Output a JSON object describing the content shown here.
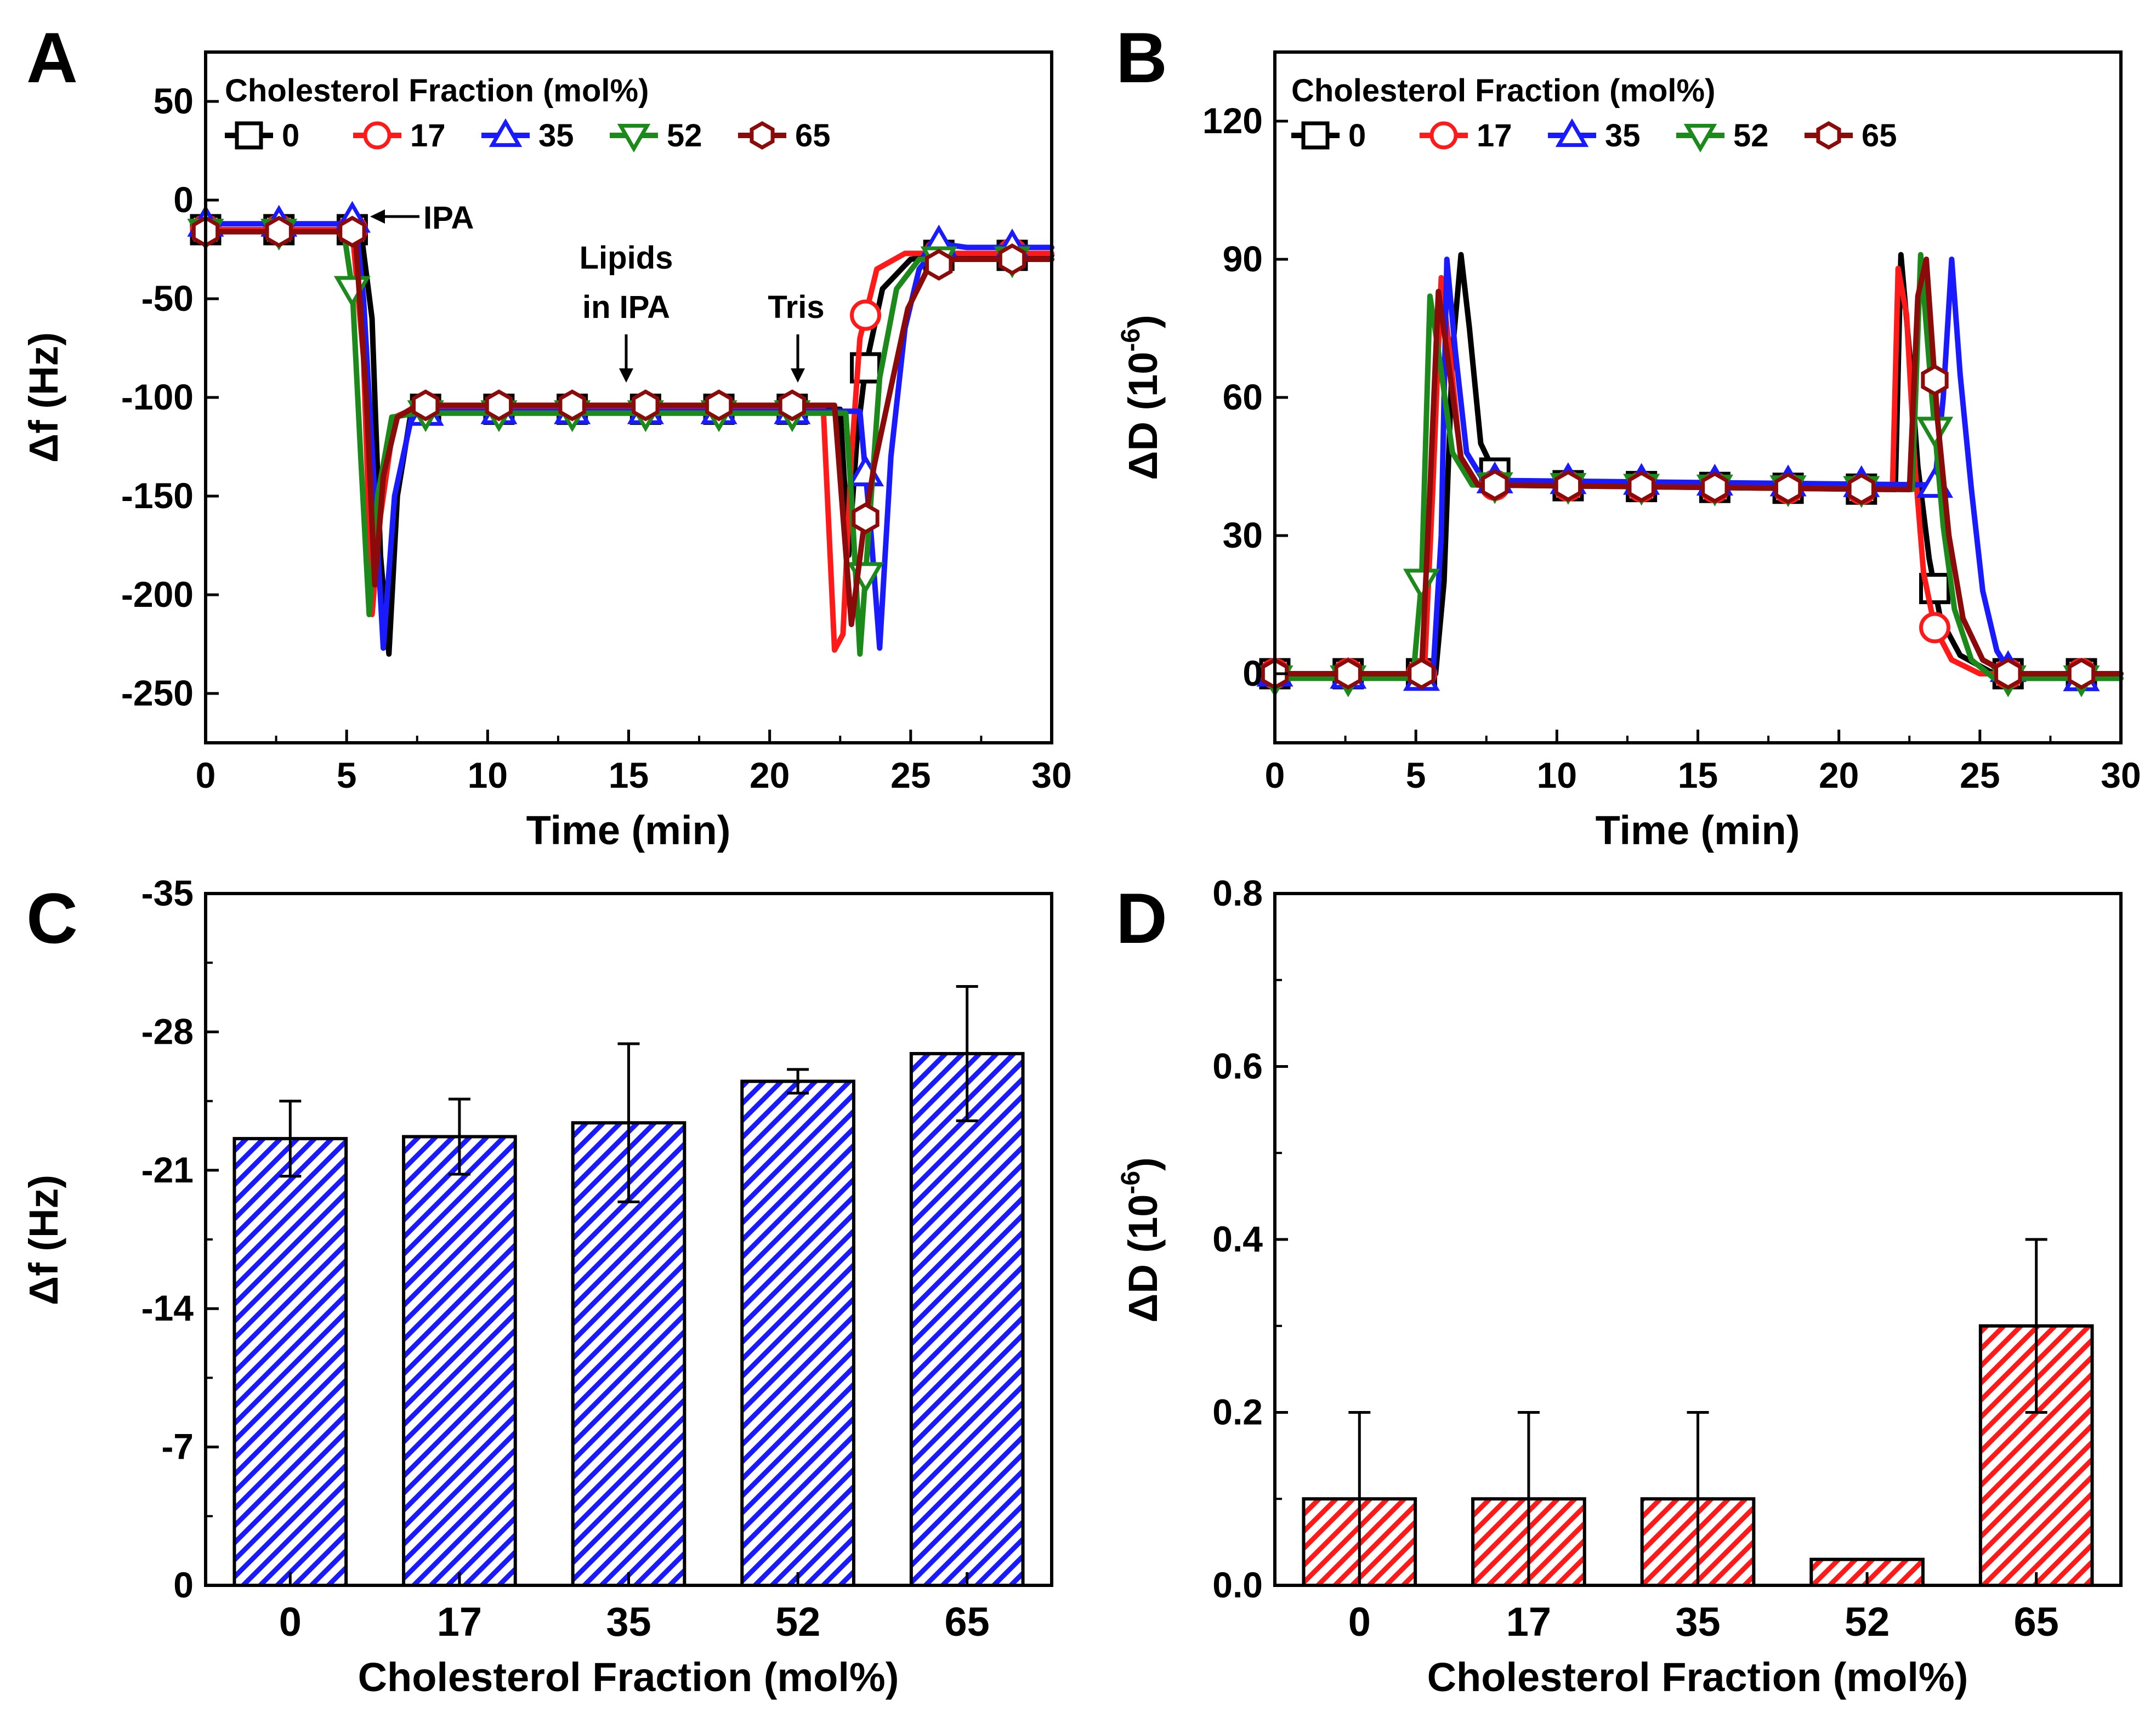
{
  "panels": [
    {
      "letter": "A"
    },
    {
      "letter": "B"
    },
    {
      "letter": "C"
    },
    {
      "letter": "D"
    }
  ],
  "legend": {
    "title": "Cholesterol Fraction (mol%)",
    "entries": [
      {
        "label": "0",
        "color": "#000000",
        "marker": "square"
      },
      {
        "label": "17",
        "color": "#ff1a1a",
        "marker": "circle"
      },
      {
        "label": "35",
        "color": "#1a1aff",
        "marker": "triangle-up"
      },
      {
        "label": "52",
        "color": "#1b8a1b",
        "marker": "triangle-down"
      },
      {
        "label": "65",
        "color": "#8b0a0a",
        "marker": "hexagon"
      }
    ]
  },
  "chart_data": [
    {
      "panel": "A",
      "type": "line",
      "title": "",
      "xlabel": "Time (min)",
      "ylabel": "Δf (Hz)",
      "xlim": [
        0,
        30
      ],
      "ylim": [
        -275,
        75
      ],
      "xticks": [
        0,
        5,
        10,
        15,
        20,
        25,
        30
      ],
      "yticks": [
        50,
        0,
        -50,
        -100,
        -150,
        -200,
        -250
      ],
      "legend_position": "top",
      "annotations": [
        {
          "text": "IPA",
          "x": 6.3,
          "y": -12,
          "arrow": "left"
        },
        {
          "text": "Lipids",
          "x": 15.0,
          "y": -30
        },
        {
          "text": "in IPA",
          "x": 15.0,
          "y": -55,
          "arrow": "down"
        },
        {
          "text": "Tris",
          "x": 21.3,
          "y": -55,
          "arrow": "down"
        }
      ],
      "series": [
        {
          "name": "0",
          "color": "#000000",
          "marker": "square",
          "points": [
            [
              0,
              -15
            ],
            [
              5.5,
              -15
            ],
            [
              5.9,
              -60
            ],
            [
              6.2,
              -180
            ],
            [
              6.5,
              -230
            ],
            [
              6.8,
              -150
            ],
            [
              7.3,
              -106
            ],
            [
              22.5,
              -106
            ],
            [
              22.8,
              -180
            ],
            [
              23.1,
              -120
            ],
            [
              23.4,
              -85
            ],
            [
              24.0,
              -45
            ],
            [
              25.0,
              -30
            ],
            [
              26.0,
              -28
            ],
            [
              30,
              -28
            ]
          ]
        },
        {
          "name": "17",
          "color": "#ff1a1a",
          "marker": "circle",
          "points": [
            [
              0,
              -15
            ],
            [
              5.2,
              -15
            ],
            [
              5.6,
              -80
            ],
            [
              5.9,
              -210
            ],
            [
              6.2,
              -160
            ],
            [
              6.7,
              -110
            ],
            [
              7.5,
              -105
            ],
            [
              21.9,
              -105
            ],
            [
              22.3,
              -228
            ],
            [
              22.6,
              -220
            ],
            [
              22.9,
              -130
            ],
            [
              23.2,
              -70
            ],
            [
              23.8,
              -35
            ],
            [
              24.8,
              -27
            ],
            [
              30,
              -27
            ]
          ]
        },
        {
          "name": "35",
          "color": "#1a1aff",
          "marker": "triangle-up",
          "points": [
            [
              0,
              -12
            ],
            [
              5.1,
              -12
            ],
            [
              5.3,
              -8
            ],
            [
              5.6,
              -50
            ],
            [
              6.0,
              -150
            ],
            [
              6.3,
              -227
            ],
            [
              6.7,
              -150
            ],
            [
              7.3,
              -110
            ],
            [
              8,
              -107
            ],
            [
              23.2,
              -107
            ],
            [
              23.6,
              -170
            ],
            [
              23.9,
              -227
            ],
            [
              24.3,
              -130
            ],
            [
              24.8,
              -65
            ],
            [
              25.3,
              -35
            ],
            [
              26.0,
              -22
            ],
            [
              27,
              -24
            ],
            [
              30,
              -24
            ]
          ]
        },
        {
          "name": "52",
          "color": "#1b8a1b",
          "marker": "triangle-down",
          "points": [
            [
              0,
              -16
            ],
            [
              4.9,
              -16
            ],
            [
              5.2,
              -45
            ],
            [
              5.5,
              -130
            ],
            [
              5.8,
              -210
            ],
            [
              6.1,
              -150
            ],
            [
              6.6,
              -110
            ],
            [
              7.5,
              -108
            ],
            [
              22.7,
              -108
            ],
            [
              22.9,
              -150
            ],
            [
              23.2,
              -230
            ],
            [
              23.5,
              -170
            ],
            [
              23.9,
              -90
            ],
            [
              24.5,
              -45
            ],
            [
              25.3,
              -30
            ],
            [
              30,
              -30
            ]
          ]
        },
        {
          "name": "65",
          "color": "#8b0a0a",
          "marker": "hexagon",
          "points": [
            [
              0,
              -16
            ],
            [
              5.3,
              -16
            ],
            [
              5.7,
              -100
            ],
            [
              6.0,
              -195
            ],
            [
              6.3,
              -140
            ],
            [
              6.8,
              -110
            ],
            [
              7.5,
              -104
            ],
            [
              22.3,
              -104
            ],
            [
              22.6,
              -160
            ],
            [
              22.9,
              -215
            ],
            [
              23.3,
              -170
            ],
            [
              23.7,
              -135
            ],
            [
              24.3,
              -95
            ],
            [
              24.9,
              -55
            ],
            [
              25.6,
              -35
            ],
            [
              26.5,
              -30
            ],
            [
              30,
              -30
            ]
          ]
        }
      ]
    },
    {
      "panel": "B",
      "type": "line",
      "title": "",
      "xlabel": "Time (min)",
      "ylabel": "ΔD (10",
      "ylabel_sup": "-6",
      "ylabel_close": ")",
      "xlim": [
        0,
        30
      ],
      "ylim": [
        -15,
        135
      ],
      "xticks": [
        0,
        5,
        10,
        15,
        20,
        25,
        30
      ],
      "yticks": [
        0,
        30,
        60,
        90,
        120
      ],
      "legend_position": "top",
      "series": [
        {
          "name": "0",
          "color": "#000000",
          "marker": "square",
          "points": [
            [
              0,
              0
            ],
            [
              5.7,
              0
            ],
            [
              6.0,
              20
            ],
            [
              6.3,
              70
            ],
            [
              6.6,
              91
            ],
            [
              6.9,
              75
            ],
            [
              7.3,
              50
            ],
            [
              8.0,
              41
            ],
            [
              22.0,
              40
            ],
            [
              22.2,
              91
            ],
            [
              22.5,
              70
            ],
            [
              22.8,
              45
            ],
            [
              23.2,
              25
            ],
            [
              23.6,
              12
            ],
            [
              24.3,
              4
            ],
            [
              25.5,
              0
            ],
            [
              30,
              0
            ]
          ]
        },
        {
          "name": "17",
          "color": "#ff1a1a",
          "marker": "circle",
          "points": [
            [
              0,
              0
            ],
            [
              5.3,
              0
            ],
            [
              5.6,
              40
            ],
            [
              5.9,
              86
            ],
            [
              6.2,
              70
            ],
            [
              6.6,
              46
            ],
            [
              7.2,
              41
            ],
            [
              21.9,
              40
            ],
            [
              22.1,
              88
            ],
            [
              22.4,
              78
            ],
            [
              22.7,
              45
            ],
            [
              23.0,
              22
            ],
            [
              23.4,
              10
            ],
            [
              24.0,
              3
            ],
            [
              25.0,
              0
            ],
            [
              30,
              0
            ]
          ]
        },
        {
          "name": "35",
          "color": "#1a1aff",
          "marker": "triangle-up",
          "points": [
            [
              0,
              0
            ],
            [
              5.6,
              -1
            ],
            [
              5.9,
              30
            ],
            [
              6.1,
              90
            ],
            [
              6.4,
              70
            ],
            [
              6.8,
              48
            ],
            [
              7.4,
              42
            ],
            [
              23.4,
              41
            ],
            [
              23.7,
              60
            ],
            [
              24.0,
              90
            ],
            [
              24.3,
              65
            ],
            [
              24.7,
              40
            ],
            [
              25.1,
              18
            ],
            [
              25.6,
              5
            ],
            [
              26.2,
              -1
            ],
            [
              30,
              -1
            ]
          ]
        },
        {
          "name": "52",
          "color": "#1b8a1b",
          "marker": "triangle-down",
          "points": [
            [
              0,
              -1
            ],
            [
              4.9,
              -1
            ],
            [
              5.2,
              20
            ],
            [
              5.5,
              82
            ],
            [
              5.8,
              70
            ],
            [
              6.3,
              48
            ],
            [
              7.0,
              41
            ],
            [
              22.6,
              40
            ],
            [
              22.9,
              91
            ],
            [
              23.3,
              60
            ],
            [
              23.7,
              32
            ],
            [
              24.1,
              14
            ],
            [
              24.7,
              3
            ],
            [
              25.5,
              -1
            ],
            [
              30,
              -1
            ]
          ]
        },
        {
          "name": "65",
          "color": "#8b0a0a",
          "marker": "hexagon",
          "points": [
            [
              0,
              0
            ],
            [
              5.2,
              0
            ],
            [
              5.5,
              40
            ],
            [
              5.8,
              83
            ],
            [
              6.1,
              70
            ],
            [
              6.6,
              47
            ],
            [
              7.2,
              41
            ],
            [
              22.5,
              40
            ],
            [
              22.8,
              82
            ],
            [
              23.1,
              90
            ],
            [
              23.5,
              55
            ],
            [
              23.9,
              30
            ],
            [
              24.4,
              12
            ],
            [
              25.1,
              3
            ],
            [
              26.0,
              0
            ],
            [
              30,
              0
            ]
          ]
        }
      ]
    },
    {
      "panel": "C",
      "type": "bar",
      "title": "",
      "xlabel": "Cholesterol Fraction (mol%)",
      "ylabel": "Δf (Hz)",
      "categories": [
        "0",
        "17",
        "35",
        "52",
        "65"
      ],
      "values": [
        -22.6,
        -22.7,
        -23.4,
        -25.5,
        -26.9
      ],
      "errors": [
        1.9,
        1.9,
        4.0,
        0.6,
        3.4
      ],
      "ylim": [
        0,
        -35
      ],
      "yticks": [
        0,
        -7,
        -14,
        -21,
        -28,
        -35
      ],
      "bar_color": "#1a1aff",
      "hatch": "diagonal"
    },
    {
      "panel": "D",
      "type": "bar",
      "title": "",
      "xlabel": "Cholesterol Fraction (mol%)",
      "ylabel": "ΔD (10",
      "ylabel_sup": "-6",
      "ylabel_close": ")",
      "categories": [
        "0",
        "17",
        "35",
        "52",
        "65"
      ],
      "values": [
        0.1,
        0.1,
        0.1,
        0.03,
        0.3
      ],
      "errors": [
        0.1,
        0.1,
        0.1,
        0.0,
        0.1
      ],
      "ylim": [
        0,
        0.8
      ],
      "yticks": [
        0.0,
        0.2,
        0.4,
        0.6,
        0.8
      ],
      "tick_format_decimals": 1,
      "bar_color": "#ff1a1a",
      "hatch": "diagonal"
    }
  ]
}
